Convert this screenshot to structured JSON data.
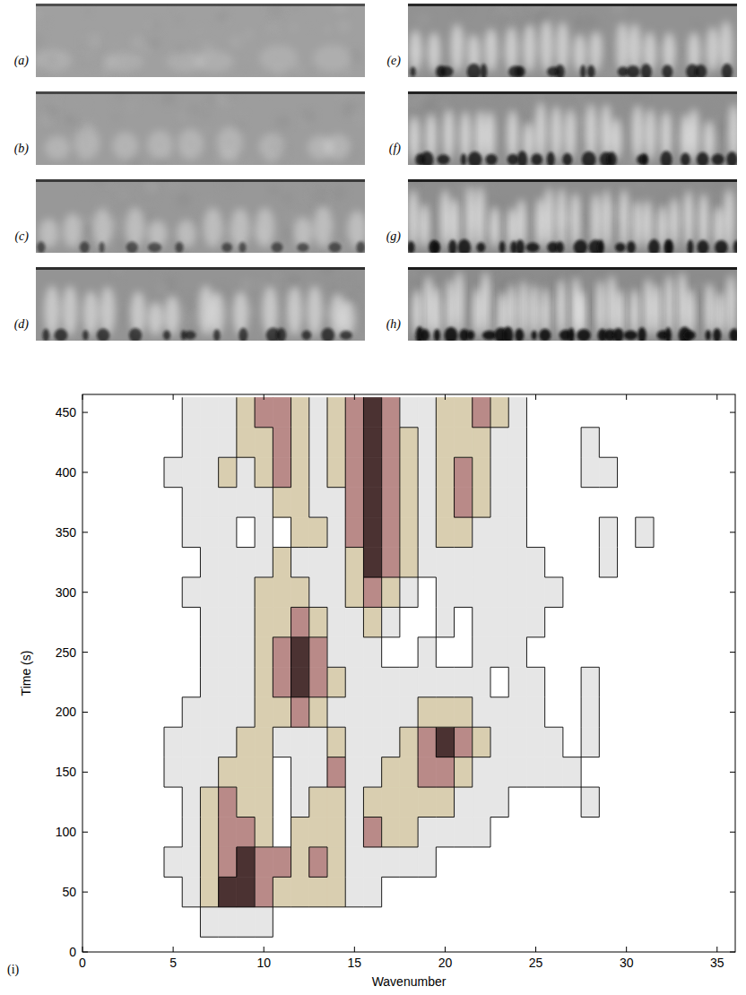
{
  "panels": [
    {
      "label": "(a)"
    },
    {
      "label": "(b)"
    },
    {
      "label": "(c)"
    },
    {
      "label": "(d)"
    },
    {
      "label": "(e)"
    },
    {
      "label": "(f)"
    },
    {
      "label": "(g)"
    },
    {
      "label": "(h)"
    }
  ],
  "chart_data": {
    "type": "heatmap",
    "panel_label": "(i)",
    "x_label": "Wavenumber",
    "y_label": "Time (s)",
    "xlim": [
      0,
      36
    ],
    "ylim": [
      0,
      465
    ],
    "xticks": [
      0,
      5,
      10,
      15,
      20,
      25,
      30,
      35
    ],
    "yticks": [
      0,
      50,
      100,
      150,
      200,
      250,
      300,
      350,
      400,
      450
    ],
    "colors": [
      "#ffffff",
      "#e6e6e6",
      "#d9ceb0",
      "#b98a88",
      "#4b3232"
    ],
    "x": [
      0,
      1,
      2,
      3,
      4,
      5,
      6,
      7,
      8,
      9,
      10,
      11,
      12,
      13,
      14,
      15,
      16,
      17,
      18,
      19,
      20,
      21,
      22,
      23,
      24,
      25,
      26,
      27,
      28,
      29,
      30,
      31,
      32,
      33,
      34,
      35,
      36
    ],
    "y": [
      0,
      25,
      50,
      75,
      100,
      125,
      150,
      175,
      200,
      225,
      250,
      275,
      300,
      325,
      350,
      375,
      400,
      425,
      450
    ],
    "z": [
      [
        0,
        0,
        0,
        0,
        0,
        0,
        0,
        0,
        0,
        0,
        0,
        0,
        0,
        0,
        0,
        0,
        0,
        0,
        0,
        0,
        0,
        0,
        0,
        0,
        0,
        0,
        0,
        0,
        0,
        0,
        0,
        0,
        0,
        0,
        0,
        0,
        0
      ],
      [
        0,
        0,
        0,
        0,
        0,
        0,
        0,
        1,
        1,
        1,
        1,
        0,
        0,
        0,
        0,
        0,
        0,
        0,
        0,
        0,
        0,
        0,
        0,
        0,
        0,
        0,
        0,
        0,
        0,
        0,
        0,
        0,
        0,
        0,
        0,
        0,
        0
      ],
      [
        0,
        0,
        0,
        0,
        0,
        0,
        1,
        2,
        4,
        4,
        3,
        2,
        2,
        2,
        2,
        1,
        1,
        0,
        0,
        0,
        0,
        0,
        0,
        0,
        0,
        0,
        0,
        0,
        0,
        0,
        0,
        0,
        0,
        0,
        0,
        0,
        0
      ],
      [
        0,
        0,
        0,
        0,
        0,
        1,
        1,
        2,
        3,
        4,
        3,
        3,
        2,
        3,
        2,
        1,
        1,
        1,
        1,
        1,
        0,
        0,
        0,
        0,
        0,
        0,
        0,
        0,
        0,
        0,
        0,
        0,
        0,
        0,
        0,
        0,
        0
      ],
      [
        0,
        0,
        0,
        0,
        0,
        0,
        1,
        2,
        3,
        3,
        2,
        0,
        2,
        2,
        2,
        1,
        3,
        2,
        2,
        1,
        1,
        1,
        1,
        0,
        0,
        0,
        0,
        0,
        0,
        0,
        0,
        0,
        0,
        0,
        0,
        0,
        0
      ],
      [
        0,
        0,
        0,
        0,
        0,
        0,
        1,
        2,
        3,
        2,
        2,
        0,
        1,
        2,
        2,
        1,
        2,
        2,
        2,
        2,
        2,
        1,
        1,
        1,
        0,
        0,
        0,
        0,
        1,
        0,
        0,
        0,
        0,
        0,
        0,
        0,
        0
      ],
      [
        0,
        0,
        0,
        0,
        0,
        1,
        1,
        1,
        2,
        2,
        2,
        0,
        1,
        1,
        3,
        1,
        1,
        2,
        2,
        3,
        3,
        2,
        1,
        1,
        1,
        1,
        1,
        1,
        0,
        0,
        0,
        0,
        0,
        0,
        0,
        0,
        0
      ],
      [
        0,
        0,
        0,
        0,
        0,
        1,
        1,
        1,
        1,
        2,
        2,
        1,
        1,
        1,
        2,
        1,
        1,
        1,
        2,
        3,
        4,
        3,
        2,
        1,
        1,
        1,
        1,
        0,
        1,
        0,
        0,
        0,
        0,
        0,
        0,
        0,
        0
      ],
      [
        0,
        0,
        0,
        0,
        0,
        0,
        1,
        1,
        1,
        1,
        2,
        2,
        3,
        2,
        1,
        1,
        1,
        1,
        1,
        2,
        2,
        2,
        1,
        1,
        1,
        1,
        0,
        0,
        1,
        0,
        0,
        0,
        0,
        0,
        0,
        0,
        0
      ],
      [
        0,
        0,
        0,
        0,
        0,
        0,
        0,
        1,
        1,
        1,
        2,
        3,
        4,
        3,
        2,
        1,
        1,
        1,
        1,
        1,
        1,
        1,
        1,
        0,
        1,
        1,
        0,
        0,
        1,
        0,
        0,
        0,
        0,
        0,
        0,
        0,
        0
      ],
      [
        0,
        0,
        0,
        0,
        0,
        0,
        0,
        1,
        1,
        1,
        2,
        3,
        4,
        3,
        1,
        1,
        1,
        0,
        0,
        1,
        0,
        0,
        1,
        1,
        1,
        0,
        0,
        0,
        0,
        0,
        0,
        0,
        0,
        0,
        0,
        0,
        0
      ],
      [
        0,
        0,
        0,
        0,
        0,
        0,
        0,
        1,
        1,
        1,
        2,
        2,
        3,
        2,
        1,
        1,
        2,
        1,
        0,
        0,
        1,
        0,
        1,
        1,
        1,
        1,
        0,
        0,
        0,
        0,
        0,
        0,
        0,
        0,
        0,
        0,
        0
      ],
      [
        0,
        0,
        0,
        0,
        0,
        0,
        1,
        1,
        1,
        1,
        2,
        2,
        2,
        1,
        1,
        2,
        3,
        2,
        1,
        0,
        1,
        1,
        1,
        1,
        1,
        1,
        1,
        0,
        0,
        0,
        0,
        0,
        0,
        0,
        0,
        0,
        0
      ],
      [
        0,
        0,
        0,
        0,
        0,
        0,
        0,
        1,
        1,
        1,
        1,
        2,
        1,
        1,
        1,
        2,
        4,
        3,
        2,
        1,
        1,
        1,
        1,
        1,
        1,
        1,
        0,
        0,
        0,
        1,
        0,
        0,
        0,
        0,
        0,
        0,
        0
      ],
      [
        0,
        0,
        0,
        0,
        0,
        0,
        1,
        1,
        1,
        0,
        1,
        0,
        2,
        2,
        1,
        3,
        4,
        3,
        2,
        1,
        2,
        2,
        1,
        1,
        1,
        0,
        0,
        0,
        0,
        1,
        0,
        1,
        0,
        0,
        0,
        0,
        0
      ],
      [
        0,
        0,
        0,
        0,
        0,
        0,
        1,
        1,
        1,
        1,
        1,
        2,
        2,
        1,
        1,
        3,
        4,
        3,
        2,
        1,
        2,
        3,
        2,
        1,
        1,
        0,
        0,
        0,
        0,
        0,
        0,
        0,
        0,
        0,
        0,
        0,
        0
      ],
      [
        0,
        0,
        0,
        0,
        0,
        1,
        1,
        1,
        2,
        1,
        2,
        3,
        2,
        1,
        2,
        3,
        4,
        3,
        2,
        1,
        2,
        3,
        2,
        1,
        1,
        0,
        0,
        0,
        1,
        1,
        0,
        0,
        0,
        0,
        0,
        0,
        0
      ],
      [
        0,
        0,
        0,
        0,
        0,
        0,
        1,
        1,
        1,
        2,
        2,
        3,
        2,
        1,
        2,
        3,
        4,
        3,
        2,
        1,
        2,
        2,
        2,
        1,
        1,
        0,
        0,
        0,
        1,
        0,
        0,
        0,
        0,
        0,
        0,
        0,
        0
      ],
      [
        0,
        0,
        0,
        0,
        0,
        0,
        1,
        1,
        1,
        2,
        3,
        3,
        2,
        1,
        2,
        3,
        4,
        3,
        1,
        1,
        2,
        2,
        3,
        2,
        1,
        0,
        0,
        0,
        0,
        0,
        0,
        0,
        0,
        0,
        0,
        0,
        0
      ]
    ]
  }
}
